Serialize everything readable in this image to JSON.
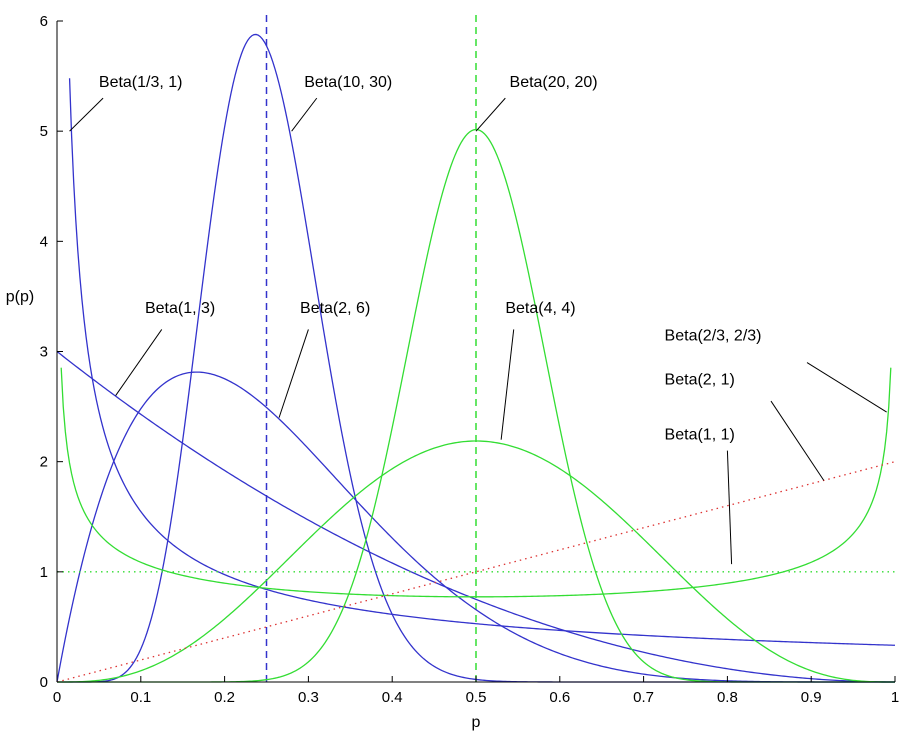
{
  "chart_data": {
    "type": "line",
    "xlabel": "p",
    "ylabel": "p(p)",
    "xlim": [
      0,
      1
    ],
    "ylim": [
      0,
      6
    ],
    "x_ticks": [
      "0",
      "0.1",
      "0.2",
      "0.3",
      "0.4",
      "0.5",
      "0.6",
      "0.7",
      "0.8",
      "0.9",
      "1"
    ],
    "y_ticks": [
      "0",
      "1",
      "2",
      "3",
      "4",
      "5",
      "6"
    ],
    "grid": false,
    "series": [
      {
        "name": "Beta(1/3, 1)",
        "a": 0.333333,
        "b": 1,
        "color": "#3333cc",
        "dash": "solid",
        "x_start": 0.015
      },
      {
        "name": "Beta(10, 30)",
        "a": 10,
        "b": 30,
        "color": "#3333cc",
        "dash": "solid"
      },
      {
        "name": "Beta(1, 3)",
        "a": 1,
        "b": 3,
        "color": "#3333cc",
        "dash": "solid"
      },
      {
        "name": "Beta(2, 6)",
        "a": 2,
        "b": 6,
        "color": "#3333cc",
        "dash": "solid"
      },
      {
        "name": "Beta(20, 20)",
        "a": 20,
        "b": 20,
        "color": "#33dd33",
        "dash": "solid"
      },
      {
        "name": "Beta(4, 4)",
        "a": 4,
        "b": 4,
        "color": "#33dd33",
        "dash": "solid"
      },
      {
        "name": "Beta(2/3, 2/3)",
        "a": 0.666667,
        "b": 0.666667,
        "color": "#33dd33",
        "dash": "solid",
        "x_start": 0.005,
        "x_end": 0.995
      },
      {
        "name": "Beta(2, 1)",
        "a": 2,
        "b": 1,
        "color": "#dd3333",
        "dash": "dotted"
      },
      {
        "name": "Beta(1, 1)",
        "a": 1,
        "b": 1,
        "color": "#33dd33",
        "dash": "dotted"
      }
    ],
    "reference_lines": [
      {
        "x": 0.25,
        "color": "#3333cc",
        "dash": "dashed"
      },
      {
        "x": 0.5,
        "color": "#33dd33",
        "dash": "dashed"
      }
    ],
    "annotations": [
      {
        "text": "Beta(1/3, 1)",
        "tx": 0.05,
        "ty": 5.4,
        "x1": 0.055,
        "y1": 5.3,
        "x2": 0.015,
        "y2": 5.0
      },
      {
        "text": "Beta(10, 30)",
        "tx": 0.295,
        "ty": 5.4,
        "x1": 0.31,
        "y1": 5.3,
        "x2": 0.28,
        "y2": 5.0
      },
      {
        "text": "Beta(20, 20)",
        "tx": 0.54,
        "ty": 5.4,
        "x1": 0.535,
        "y1": 5.3,
        "x2": 0.5,
        "y2": 5.0
      },
      {
        "text": "Beta(1, 3)",
        "tx": 0.105,
        "ty": 3.35,
        "x1": 0.125,
        "y1": 3.2,
        "x2": 0.07,
        "y2": 2.6
      },
      {
        "text": "Beta(2, 6)",
        "tx": 0.29,
        "ty": 3.35,
        "x1": 0.3,
        "y1": 3.2,
        "x2": 0.265,
        "y2": 2.4
      },
      {
        "text": "Beta(4, 4)",
        "tx": 0.535,
        "ty": 3.35,
        "x1": 0.545,
        "y1": 3.2,
        "x2": 0.53,
        "y2": 2.2
      },
      {
        "text": "Beta(2/3, 2/3)",
        "tx": 0.725,
        "ty": 3.1,
        "x1": 0.895,
        "y1": 2.9,
        "x2": 0.99,
        "y2": 2.45
      },
      {
        "text": "Beta(2, 1)",
        "tx": 0.725,
        "ty": 2.7,
        "x1": 0.852,
        "y1": 2.55,
        "x2": 0.915,
        "y2": 1.83
      },
      {
        "text": "Beta(1, 1)",
        "tx": 0.725,
        "ty": 2.2,
        "x1": 0.8,
        "y1": 2.1,
        "x2": 0.805,
        "y2": 1.07
      }
    ]
  }
}
